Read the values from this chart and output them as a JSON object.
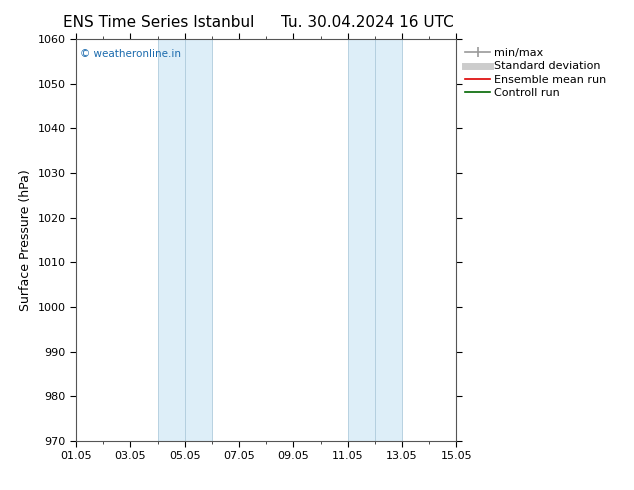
{
  "title_left": "ENS Time Series Istanbul",
  "title_right": "Tu. 30.04.2024 16 UTC",
  "ylabel": "Surface Pressure (hPa)",
  "ylim": [
    970,
    1060
  ],
  "yticks": [
    970,
    980,
    990,
    1000,
    1010,
    1020,
    1030,
    1040,
    1050,
    1060
  ],
  "xlim": [
    0,
    14
  ],
  "xtick_positions": [
    0,
    2,
    4,
    6,
    8,
    10,
    12,
    14
  ],
  "xtick_labels": [
    "01.05",
    "03.05",
    "05.05",
    "07.05",
    "09.05",
    "11.05",
    "13.05",
    "15.05"
  ],
  "watermark": "© weatheronline.in",
  "watermark_color": "#1a6aad",
  "shaded_bands": [
    {
      "x_start": 3.0,
      "x_end": 4.0
    },
    {
      "x_start": 4.0,
      "x_end": 5.0
    },
    {
      "x_start": 10.0,
      "x_end": 11.0
    },
    {
      "x_start": 11.0,
      "x_end": 12.0
    }
  ],
  "band_color": "#ddeef8",
  "band_edge_color": "#b0ccdd",
  "legend_items": [
    {
      "label": "min/max",
      "color": "#999999",
      "lw": 1.2
    },
    {
      "label": "Standard deviation",
      "color": "#cccccc",
      "lw": 5
    },
    {
      "label": "Ensemble mean run",
      "color": "#dd0000",
      "lw": 1.2
    },
    {
      "label": "Controll run",
      "color": "#006600",
      "lw": 1.2
    }
  ],
  "background_color": "#ffffff",
  "spine_color": "#555555",
  "title_fontsize": 11,
  "label_fontsize": 9,
  "tick_fontsize": 8,
  "legend_fontsize": 8
}
